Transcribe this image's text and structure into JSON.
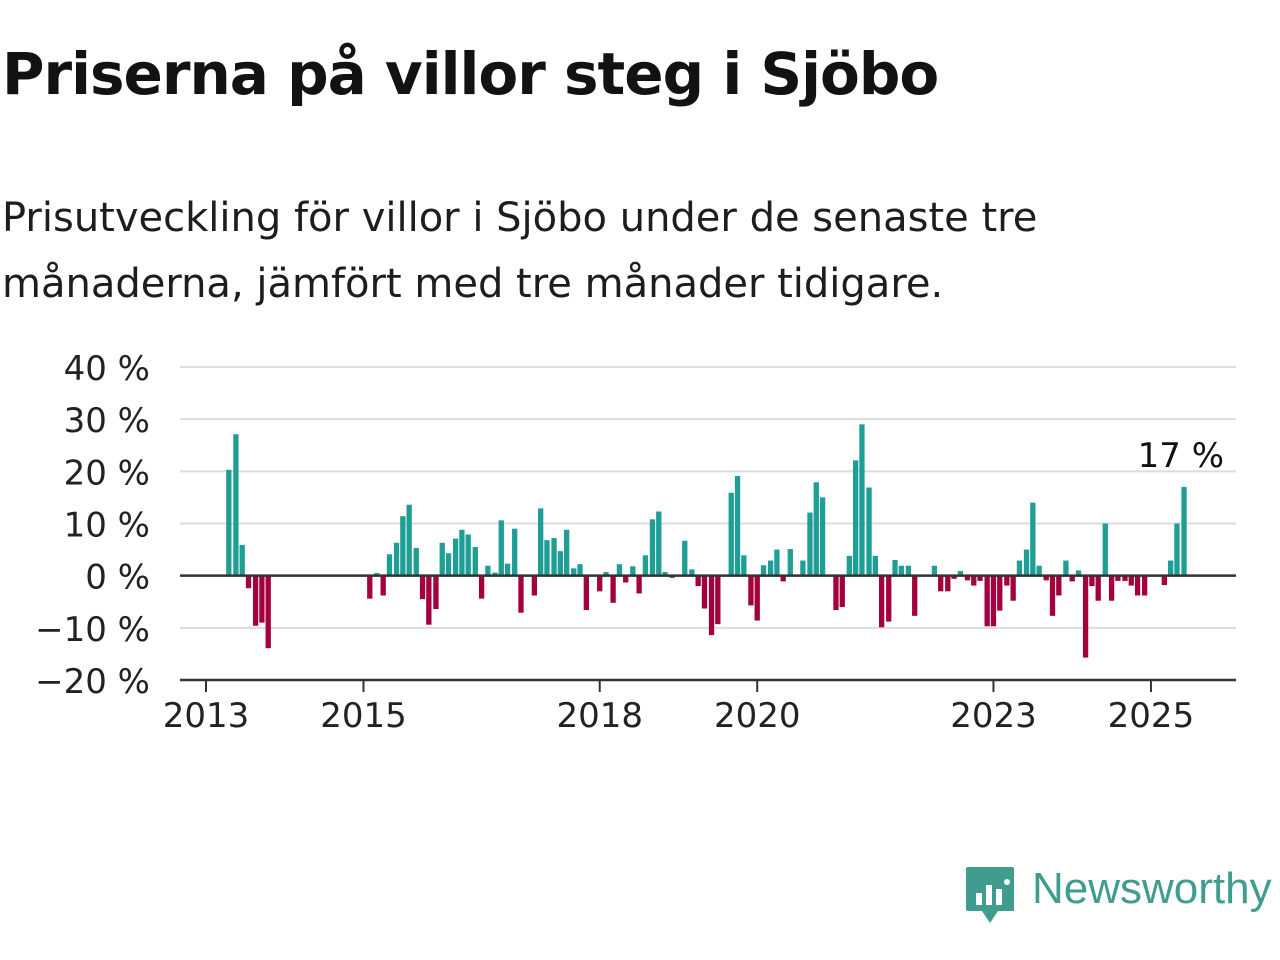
{
  "title": "Priserna på villor steg i Sjöbo",
  "subtitle": "Prisutveckling för villor i Sjöbo under de senaste tre månaderna, jämfört med tre månader tidigare.",
  "brand": {
    "name": "Newsworthy",
    "icon": "newsworthy-logo-icon",
    "color": "#3f9c8f"
  },
  "colors": {
    "positive": "#1e9e94",
    "negative": "#a3003d",
    "grid": "#dcdcdc",
    "axis": "#333333",
    "text": "#222222"
  },
  "chart_data": {
    "type": "bar",
    "ylim": [
      -20,
      40
    ],
    "yticks": [
      -20,
      -10,
      0,
      10,
      20,
      30,
      40
    ],
    "ytick_labels": [
      "−20 %",
      "−10 %",
      "0 %",
      "10 %",
      "20 %",
      "30 %",
      "40 %"
    ],
    "xlim": [
      2012.67,
      2026.08
    ],
    "xticks": [
      2013,
      2015,
      2018,
      2020,
      2023,
      2025
    ],
    "xtick_labels": [
      "2013",
      "2015",
      "2018",
      "2020",
      "2023",
      "2025"
    ],
    "grid": true,
    "annotation": {
      "text": "17 %",
      "x": 2025.42,
      "y": 17
    },
    "x": [
      2013.29,
      2013.38,
      2013.46,
      2013.54,
      2013.63,
      2013.71,
      2013.79,
      2015.08,
      2015.17,
      2015.25,
      2015.33,
      2015.42,
      2015.5,
      2015.58,
      2015.67,
      2015.75,
      2015.83,
      2015.92,
      2016.0,
      2016.08,
      2016.17,
      2016.25,
      2016.33,
      2016.42,
      2016.5,
      2016.58,
      2016.67,
      2016.75,
      2016.83,
      2016.92,
      2017.0,
      2017.08,
      2017.17,
      2017.25,
      2017.33,
      2017.42,
      2017.5,
      2017.58,
      2017.67,
      2017.75,
      2017.83,
      2017.92,
      2018.0,
      2018.08,
      2018.17,
      2018.25,
      2018.33,
      2018.42,
      2018.5,
      2018.58,
      2018.67,
      2018.75,
      2018.83,
      2018.92,
      2019.0,
      2019.08,
      2019.17,
      2019.25,
      2019.33,
      2019.42,
      2019.5,
      2019.58,
      2019.67,
      2019.75,
      2019.83,
      2019.92,
      2020.0,
      2020.08,
      2020.17,
      2020.25,
      2020.33,
      2020.42,
      2020.5,
      2020.58,
      2020.67,
      2020.75,
      2020.83,
      2020.92,
      2021.0,
      2021.08,
      2021.17,
      2021.25,
      2021.33,
      2021.42,
      2021.5,
      2021.58,
      2021.67,
      2021.75,
      2021.83,
      2021.92,
      2022.0,
      2022.08,
      2022.17,
      2022.25,
      2022.33,
      2022.42,
      2022.5,
      2022.58,
      2022.67,
      2022.75,
      2022.83,
      2022.92,
      2023.0,
      2023.08,
      2023.17,
      2023.25,
      2023.33,
      2023.42,
      2023.5,
      2023.58,
      2023.67,
      2023.75,
      2023.83,
      2023.92,
      2024.0,
      2024.08,
      2024.17,
      2024.25,
      2024.33,
      2024.42,
      2024.5,
      2024.58,
      2024.67,
      2024.75,
      2024.83,
      2024.92,
      2025.0,
      2025.08,
      2025.17,
      2025.25,
      2025.33,
      2025.42
    ],
    "values": [
      20.3,
      27.1,
      5.9,
      -2.4,
      -9.6,
      -9.0,
      -13.9,
      -4.4,
      0.5,
      -3.8,
      4.1,
      6.3,
      11.4,
      13.6,
      5.3,
      -4.5,
      -9.4,
      -6.4,
      6.3,
      4.3,
      7.1,
      8.8,
      7.9,
      5.5,
      -4.4,
      1.9,
      0.6,
      10.6,
      2.3,
      9.0,
      -7.1,
      0,
      -3.8,
      12.9,
      6.8,
      7.2,
      4.7,
      8.8,
      1.4,
      2.2,
      -6.6,
      0,
      -3.0,
      0.7,
      -5.2,
      2.2,
      -1.3,
      1.8,
      -3.4,
      3.9,
      10.8,
      12.3,
      0.7,
      -0.4,
      0,
      6.7,
      1.2,
      -2.0,
      -6.3,
      -11.4,
      -9.3,
      0,
      15.9,
      19.1,
      3.9,
      -5.7,
      -8.6,
      2.0,
      2.9,
      5.0,
      -1.1,
      5.1,
      0,
      2.9,
      12.1,
      17.9,
      15.0,
      0,
      -6.6,
      -6.0,
      3.8,
      22.1,
      29.0,
      16.9,
      3.8,
      -9.9,
      -8.8,
      3.0,
      1.9,
      1.9,
      -7.7,
      0,
      0,
      1.9,
      -3.0,
      -3.0,
      -0.6,
      0.9,
      -0.9,
      -1.9,
      -1.0,
      -9.7,
      -9.7,
      -6.7,
      -1.9,
      -4.8,
      2.9,
      5.0,
      14.0,
      1.9,
      -0.9,
      -7.7,
      -3.8,
      2.9,
      -1.1,
      1.0,
      -15.7,
      -2.0,
      -4.8,
      10.0,
      -4.8,
      -1.0,
      -1.0,
      -1.9,
      -3.8,
      -3.8,
      0,
      0,
      -1.8,
      2.9,
      10.0,
      17.0
    ]
  }
}
